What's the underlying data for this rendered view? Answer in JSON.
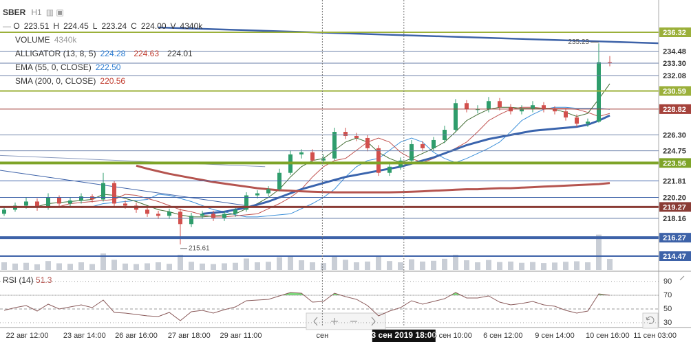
{
  "header": {
    "symbol": "SBER",
    "timeframe": "H1"
  },
  "chart_data": {
    "type": "candlestick",
    "up_color": "#2f9d6c",
    "down_color": "#d2504d",
    "ylim": [
      213.13,
      239.47
    ],
    "ohlcv": [
      {
        "key": "O",
        "value": "223.51"
      },
      {
        "key": "H",
        "value": "224.45"
      },
      {
        "key": "L",
        "value": "223.24"
      },
      {
        "key": "C",
        "value": "224.00"
      },
      {
        "key": "V",
        "value": "4340k"
      }
    ],
    "indicators": [
      {
        "name": "VOLUME",
        "values": [
          {
            "text": "4340k",
            "color": "#9a9a9a"
          }
        ]
      },
      {
        "name": "ALLIGATOR (13, 8, 5)",
        "values": [
          {
            "text": "224.28",
            "color": "#2a7bd1"
          },
          {
            "text": "224.63",
            "color": "#c0392b"
          },
          {
            "text": "224.01",
            "color": "#333333"
          }
        ]
      },
      {
        "name": "EMA (55, 0, CLOSE)",
        "values": [
          {
            "text": "222.50",
            "color": "#2a7bd1"
          }
        ]
      },
      {
        "name": "SMA (200, 0, CLOSE)",
        "values": [
          {
            "text": "220.56",
            "color": "#c0392b"
          }
        ]
      }
    ],
    "candles": [
      [
        218.6,
        219.2,
        218.4,
        219.0
      ],
      [
        219.0,
        219.7,
        218.8,
        219.4
      ],
      [
        219.4,
        220.2,
        219.1,
        219.8
      ],
      [
        219.8,
        220.1,
        218.9,
        219.2
      ],
      [
        219.2,
        220.6,
        219.0,
        220.2
      ],
      [
        220.2,
        220.4,
        219.3,
        219.6
      ],
      [
        219.6,
        220.2,
        219.3,
        219.9
      ],
      [
        219.9,
        220.6,
        219.6,
        220.3
      ],
      [
        220.3,
        220.5,
        219.7,
        220.0
      ],
      [
        220.0,
        222.6,
        219.8,
        221.6
      ],
      [
        221.6,
        221.8,
        219.3,
        219.6
      ],
      [
        219.6,
        219.9,
        219.1,
        219.4
      ],
      [
        219.4,
        219.7,
        218.7,
        219.0
      ],
      [
        219.0,
        219.3,
        218.3,
        218.6
      ],
      [
        218.6,
        218.9,
        218.1,
        218.4
      ],
      [
        218.4,
        219.1,
        218.1,
        218.8
      ],
      [
        218.8,
        219.1,
        215.61,
        217.6
      ],
      [
        217.6,
        218.7,
        217.3,
        218.4
      ],
      [
        218.4,
        218.9,
        218.1,
        218.6
      ],
      [
        218.6,
        218.9,
        217.9,
        218.2
      ],
      [
        218.2,
        218.9,
        217.9,
        218.6
      ],
      [
        218.6,
        219.3,
        218.3,
        219.0
      ],
      [
        219.0,
        220.7,
        218.8,
        220.4
      ],
      [
        220.4,
        220.9,
        220.1,
        220.6
      ],
      [
        220.6,
        221.3,
        220.3,
        221.0
      ],
      [
        221.0,
        223.0,
        220.8,
        222.6
      ],
      [
        222.6,
        224.8,
        222.4,
        224.4
      ],
      [
        224.4,
        224.9,
        224.0,
        224.6
      ],
      [
        224.6,
        224.9,
        223.5,
        223.8
      ],
      [
        223.8,
        224.4,
        223.5,
        224.0
      ],
      [
        224.0,
        227.0,
        223.8,
        226.6
      ],
      [
        226.6,
        227.0,
        225.9,
        226.2
      ],
      [
        226.2,
        226.5,
        225.7,
        226.0
      ],
      [
        226.0,
        226.3,
        224.7,
        225.0
      ],
      [
        225.0,
        225.3,
        222.3,
        222.6
      ],
      [
        222.6,
        223.5,
        222.3,
        223.2
      ],
      [
        223.2,
        224.1,
        222.9,
        223.8
      ],
      [
        223.8,
        225.8,
        223.5,
        225.4
      ],
      [
        225.4,
        225.7,
        224.7,
        225.0
      ],
      [
        225.0,
        226.1,
        224.7,
        225.8
      ],
      [
        225.8,
        227.2,
        225.5,
        226.8
      ],
      [
        226.8,
        229.8,
        226.6,
        229.4
      ],
      [
        229.4,
        229.7,
        228.5,
        228.8
      ],
      [
        228.8,
        229.2,
        228.4,
        228.8
      ],
      [
        228.8,
        230.0,
        228.5,
        229.6
      ],
      [
        229.6,
        229.9,
        228.7,
        229.0
      ],
      [
        229.0,
        229.3,
        228.3,
        228.6
      ],
      [
        228.6,
        229.2,
        228.3,
        228.8
      ],
      [
        228.8,
        229.6,
        228.5,
        229.2
      ],
      [
        229.2,
        229.5,
        228.5,
        228.8
      ],
      [
        228.8,
        229.1,
        228.3,
        228.6
      ],
      [
        228.6,
        228.9,
        227.7,
        228.0
      ],
      [
        228.0,
        228.3,
        227.1,
        227.4
      ],
      [
        227.4,
        227.9,
        227.1,
        227.6
      ],
      [
        227.6,
        235.23,
        227.5,
        233.4
      ],
      [
        233.4,
        234.0,
        233.0,
        233.3
      ]
    ],
    "lines": [
      {
        "color": "#3b8fd9",
        "width": 1,
        "values": [
          null,
          null,
          null,
          null,
          null,
          null,
          null,
          219.2,
          219.3,
          219.6,
          219.7,
          219.8,
          219.9,
          220.0,
          220.5,
          220.4,
          220.1,
          219.8,
          219.4,
          219.0,
          218.8,
          218.5,
          218.3,
          218.3,
          218.4,
          218.5,
          218.6,
          219.1,
          219.6,
          220.2,
          221.0,
          222.2,
          223.2,
          223.8,
          224.0,
          224.8,
          225.6,
          226.0,
          225.6,
          224.6,
          224.0,
          223.6,
          224.0,
          224.5,
          225.0,
          225.6,
          226.6,
          227.7,
          228.3,
          228.8,
          229.0,
          229.0,
          228.9,
          228.9,
          228.9,
          228.8
        ]
      },
      {
        "color": "#c0504d",
        "width": 1,
        "values": [
          null,
          null,
          null,
          null,
          219.2,
          219.3,
          219.6,
          219.7,
          219.8,
          219.9,
          220.0,
          220.5,
          220.4,
          220.1,
          219.8,
          219.4,
          219.0,
          218.8,
          218.5,
          218.3,
          218.3,
          218.4,
          218.5,
          218.6,
          219.1,
          219.6,
          220.2,
          221.0,
          222.2,
          223.2,
          223.8,
          224.0,
          224.8,
          225.6,
          226.0,
          225.6,
          224.6,
          224.0,
          223.6,
          224.0,
          224.5,
          225.0,
          225.6,
          226.6,
          227.7,
          228.3,
          228.8,
          229.0,
          229.0,
          228.9,
          228.9,
          228.9,
          228.8,
          228.5,
          228.1,
          228.4
        ]
      },
      {
        "color": "#3f6b30",
        "width": 1,
        "values": [
          null,
          null,
          219.2,
          219.3,
          219.6,
          219.7,
          219.8,
          219.9,
          220.0,
          220.5,
          220.4,
          220.1,
          219.8,
          219.4,
          219.0,
          218.8,
          218.5,
          218.3,
          218.3,
          218.4,
          218.5,
          218.6,
          219.1,
          219.6,
          220.2,
          221.0,
          222.2,
          223.2,
          223.8,
          224.0,
          224.8,
          225.6,
          226.0,
          225.6,
          224.6,
          224.0,
          223.6,
          224.0,
          224.5,
          225.0,
          225.6,
          226.6,
          227.7,
          228.3,
          228.8,
          229.0,
          229.0,
          228.9,
          228.9,
          228.9,
          228.8,
          228.5,
          228.1,
          228.4,
          229.8,
          231.3
        ]
      },
      {
        "color": "#3a64ad",
        "width": 3,
        "values": [
          null,
          null,
          null,
          null,
          null,
          null,
          null,
          null,
          null,
          null,
          null,
          null,
          null,
          null,
          null,
          null,
          null,
          null,
          218.6,
          218.7,
          218.8,
          219.0,
          219.2,
          219.5,
          219.8,
          220.2,
          220.6,
          221.0,
          221.3,
          221.6,
          221.9,
          222.2,
          222.4,
          222.6,
          222.8,
          223.0,
          223.2,
          223.5,
          223.8,
          224.1,
          224.5,
          224.9,
          225.3,
          225.6,
          225.9,
          226.1,
          226.3,
          226.5,
          226.7,
          226.8,
          226.9,
          227.0,
          227.1,
          227.3,
          227.7,
          228.2
        ]
      },
      {
        "color": "#b5544f",
        "width": 3,
        "values": [
          null,
          null,
          null,
          null,
          null,
          null,
          null,
          null,
          null,
          null,
          null,
          null,
          223.3,
          223.0,
          222.75,
          222.5,
          222.3,
          222.1,
          221.9,
          221.7,
          221.55,
          221.4,
          221.25,
          221.1,
          221.0,
          220.9,
          220.85,
          220.8,
          220.75,
          220.72,
          220.7,
          220.7,
          220.7,
          220.7,
          220.7,
          220.7,
          220.72,
          220.75,
          220.8,
          220.85,
          220.9,
          220.95,
          221.0,
          221.0,
          221.05,
          221.1,
          221.1,
          221.15,
          221.2,
          221.25,
          221.3,
          221.35,
          221.4,
          221.45,
          221.5,
          221.6
        ]
      }
    ],
    "trendlines": [
      {
        "from": [
          14,
          236.79
        ],
        "to": [
          59.4,
          235.25
        ],
        "color": "#3d62a8",
        "width": 2.5
      },
      {
        "from": [
          -0.4,
          224.3
        ],
        "to": [
          23.7,
          223.2
        ],
        "color": "#8a9bbf",
        "width": 1
      },
      {
        "from": [
          -0.4,
          222.85
        ],
        "to": [
          22,
          219.4
        ],
        "color": "#3d62a8",
        "width": 1
      }
    ],
    "levels": [
      {
        "value": 236.32,
        "color": "#9bb03a",
        "width": 2,
        "fill": true
      },
      {
        "value": 234.48,
        "color": "#6a7fa8",
        "width": 1,
        "fill": false
      },
      {
        "value": 233.3,
        "label": "233.30",
        "color": "#6a7fa8",
        "width": 1,
        "fill": false
      },
      {
        "value": 232.08,
        "color": "#6a7fa8",
        "width": 1,
        "fill": false
      },
      {
        "value": 230.59,
        "color": "#9bb03a",
        "width": 2,
        "fill": true
      },
      {
        "value": 228.82,
        "color": "#a5423b",
        "width": 1,
        "fill": true
      },
      {
        "value": 226.3,
        "label": "226.30",
        "color": "#6a7fa8",
        "width": 1,
        "fill": false
      },
      {
        "value": 224.75,
        "color": "#6a7fa8",
        "width": 1,
        "fill": false
      },
      {
        "value": 223.56,
        "color": "#7ea428",
        "width": 4,
        "fill": true
      },
      {
        "value": 221.81,
        "color": "#3d62a8",
        "width": 1,
        "fill": false
      },
      {
        "value": 220.2,
        "label": "220.20",
        "color": "#3d62a8",
        "width": 1,
        "fill": false
      },
      {
        "value": 219.27,
        "color": "#8a3b35",
        "width": 3,
        "fill": true
      },
      {
        "value": 218.16,
        "color": "#6a7fa8",
        "width": 1,
        "fill": false
      },
      {
        "value": 216.27,
        "color": "#3d62a8",
        "width": 4,
        "fill": true
      },
      {
        "value": 214.47,
        "color": "#3d62a8",
        "width": 2,
        "fill": true
      }
    ],
    "annotations": [
      {
        "candle": 54,
        "part": 1
      },
      {
        "candle": 16,
        "part": 2
      }
    ],
    "volume": {
      "color": "#c9ced6",
      "ylim": [
        0,
        15000
      ],
      "values": [
        3000,
        2500,
        2800,
        2200,
        3500,
        2600,
        2400,
        3000,
        2300,
        6500,
        4000,
        2500,
        2300,
        2600,
        3000,
        2400,
        6000,
        3200,
        2500,
        2300,
        2600,
        2800,
        4500,
        3000,
        3200,
        5000,
        5500,
        3800,
        3000,
        2700,
        5200,
        4000,
        3000,
        3300,
        5600,
        3500,
        3000,
        4200,
        3300,
        3600,
        4400,
        6000,
        3800,
        3000,
        3900,
        3100,
        3300,
        2800,
        3100,
        2700,
        2900,
        3200,
        3400,
        3000,
        14000,
        4340
      ]
    },
    "rsi": {
      "name": "RSI (14)",
      "last": "51.3",
      "color": "#8a5a5a",
      "fill": "#7ddc7d",
      "overbought": 70,
      "ylim": [
        24,
        102
      ],
      "yticks": [
        90,
        70,
        50,
        30
      ],
      "values": [
        48,
        52,
        55,
        47,
        57,
        50,
        53,
        56,
        52,
        63,
        45,
        44,
        42,
        40,
        39,
        45,
        33,
        46,
        48,
        44,
        49,
        53,
        62,
        63,
        64,
        69,
        74,
        73,
        60,
        61,
        73,
        68,
        64,
        55,
        40,
        47,
        52,
        62,
        57,
        61,
        65,
        74,
        66,
        66,
        69,
        60,
        56,
        58,
        61,
        56,
        54,
        48,
        44,
        47,
        72,
        70
      ]
    },
    "time_labels": [
      {
        "label": "22 авг 12:00",
        "index": 2.1
      },
      {
        "label": "23 авг 14:00",
        "index": 7.3
      },
      {
        "label": "26 авг 16:00",
        "index": 12
      },
      {
        "label": "27 авг 18:00",
        "index": 16.8
      },
      {
        "label": "29 авг 11:00",
        "index": 21.5
      },
      {
        "label": "сен",
        "index": 28.9,
        "line": true
      },
      {
        "label": "3 сен 2019 18:00",
        "index": 36.3,
        "line": true,
        "cursor": true
      },
      {
        "label": "5 сен 10:00",
        "index": 40.7
      },
      {
        "label": "6 сен 12:00",
        "index": 45.3
      },
      {
        "label": "9 сен 14:00",
        "index": 50
      },
      {
        "label": "10 сен 16:00",
        "index": 54.8
      },
      {
        "label": "11 сен 03:00",
        "index": 59.1
      }
    ]
  }
}
